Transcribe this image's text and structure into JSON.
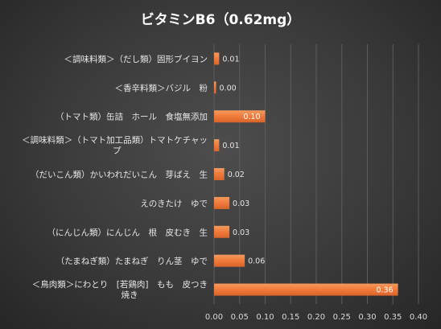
{
  "chart_data": {
    "type": "bar",
    "orientation": "horizontal",
    "title": "ビタミンB6（0.62mg）",
    "categories": [
      "＜調味料類＞（だし類）固形ブイヨン",
      "＜香辛料類＞バジル　粉",
      "（トマト類）缶詰　ホール　食塩無添加",
      "＜調味料類＞（トマト加工品類）トマトケチャップ",
      "（だいこん類）かいわれだいこん　芽ばえ　生",
      "えのきたけ　ゆで",
      "（にんじん類）にんじん　根　皮むき　生",
      "（たまねぎ類）たまねぎ　りん茎　ゆで",
      "＜鳥肉類＞にわとり　[若鶏肉]　もも　皮つき　焼き"
    ],
    "values": [
      0.01,
      0.0,
      0.1,
      0.01,
      0.02,
      0.03,
      0.03,
      0.06,
      0.36
    ],
    "data_labels": [
      "0.01",
      "0.00",
      "0.10",
      "0.01",
      "0.02",
      "0.03",
      "0.03",
      "0.06",
      "0.36"
    ],
    "xlim": [
      0,
      0.4
    ],
    "xticks": [
      "0.00",
      "0.05",
      "0.10",
      "0.15",
      "0.20",
      "0.25",
      "0.30",
      "0.35",
      "0.40"
    ],
    "grid": true,
    "legend": "none",
    "colors": {
      "bar": "#f07a3a",
      "label_outside": "#e6e6e6",
      "label_inside": "#ffffff"
    }
  }
}
